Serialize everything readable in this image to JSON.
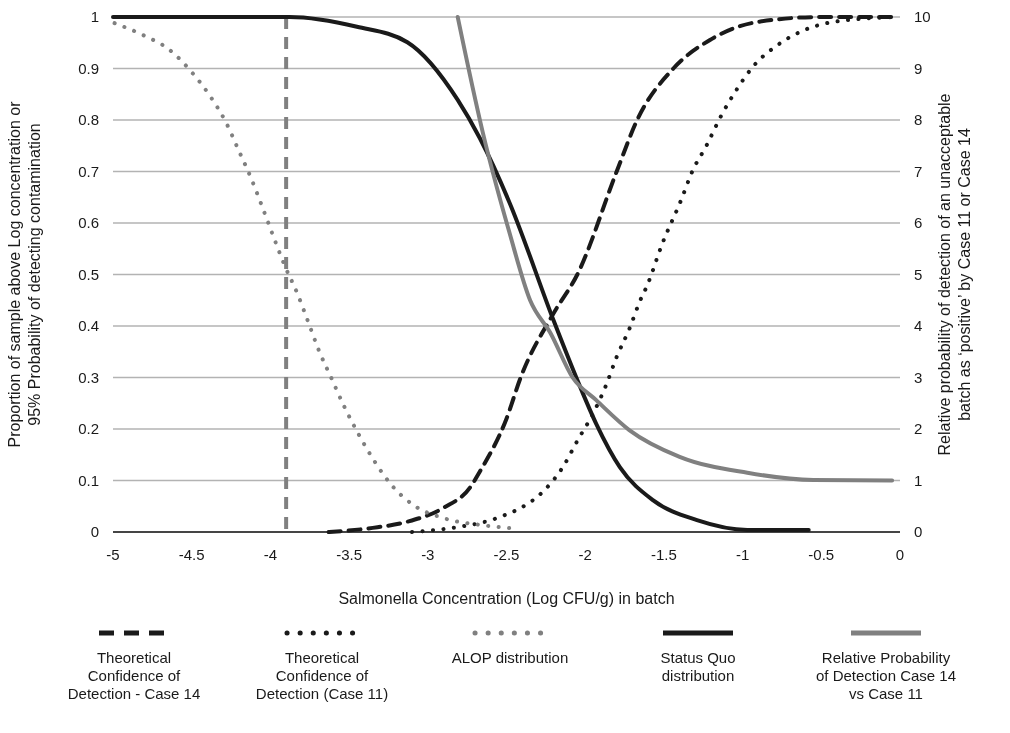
{
  "chart_data": {
    "type": "line",
    "xlabel": "Salmonella Concentration (Log CFU/g) in batch",
    "ylabel": "Proportion of sample above Log concentration or 95% Probability of detecting contamination",
    "y2label": "Relative probability of detection of an unacceptable batch as ‘positive’ by Case 11 or Case 14",
    "xlim": [
      -5,
      0
    ],
    "xticks": [
      -5,
      -4.5,
      -4,
      -3.5,
      -3,
      -2.5,
      -2,
      -1.5,
      -1,
      -0.5,
      0
    ],
    "ylim": [
      0,
      1
    ],
    "yticks": [
      0,
      0.1,
      0.2,
      0.3,
      0.4,
      0.5,
      0.6,
      0.7,
      0.8,
      0.9,
      1
    ],
    "y2lim": [
      0,
      10
    ],
    "y2ticks": [
      0,
      1,
      2,
      3,
      4,
      5,
      6,
      7,
      8,
      9,
      10
    ],
    "grid": "y",
    "legend": "bottom",
    "marker": "none",
    "ref_lines": [
      {
        "axis": "x",
        "value": -3.9,
        "color": "#808080",
        "line_style": "dashed"
      }
    ],
    "series": [
      {
        "name": "Theoretical Confidence of Detection - Case 14",
        "color": "#1a1a1a",
        "line_style": "dashed",
        "x": [
          -3.63,
          -3.35,
          -3.13,
          -2.9,
          -2.73,
          -2.67,
          -2.5,
          -2.41,
          -2.2,
          -2.05,
          -1.8,
          -1.67,
          -1.44,
          -1.21,
          -0.91,
          -0.5,
          -0.05
        ],
        "values": [
          0,
          0.008,
          0.02,
          0.047,
          0.087,
          0.117,
          0.22,
          0.3,
          0.425,
          0.5,
          0.7,
          0.8,
          0.9,
          0.955,
          0.99,
          1,
          1
        ]
      },
      {
        "name": "Theoretical Confidence of Detection (Case 11)",
        "color": "#1a1a1a",
        "line_style": "dotted",
        "x": [
          -3.1,
          -2.8,
          -2.6,
          -2.51,
          -2.42,
          -2.27,
          -2.14,
          -2.05,
          -1.95,
          -1.87,
          -1.8,
          -1.72,
          -1.65,
          -1.61,
          -1.51,
          -1.39,
          -1.32,
          -1.23,
          -1.14,
          -1.04,
          -0.93,
          -0.78,
          -0.62,
          -0.43,
          -0.03
        ],
        "values": [
          0,
          0.01,
          0.023,
          0.033,
          0.045,
          0.078,
          0.127,
          0.177,
          0.23,
          0.283,
          0.34,
          0.394,
          0.45,
          0.476,
          0.56,
          0.645,
          0.7,
          0.75,
          0.806,
          0.858,
          0.905,
          0.945,
          0.973,
          0.99,
          1
        ]
      },
      {
        "name": "ALOP distribution",
        "color": "#808080",
        "line_style": "dotted",
        "x": [
          -4.99,
          -4.81,
          -4.64,
          -4.5,
          -4.38,
          -4.28,
          -4.2,
          -4.12,
          -4.05,
          -3.98,
          -3.91,
          -3.83,
          -3.76,
          -3.69,
          -3.61,
          -3.53,
          -3.44,
          -3.34,
          -3.23,
          -3.08,
          -2.9,
          -2.62,
          -2.42
        ],
        "values": [
          0.988,
          0.965,
          0.936,
          0.893,
          0.845,
          0.794,
          0.74,
          0.685,
          0.63,
          0.573,
          0.518,
          0.464,
          0.408,
          0.351,
          0.297,
          0.243,
          0.19,
          0.138,
          0.091,
          0.05,
          0.027,
          0.012,
          0.006
        ]
      },
      {
        "name": "Status Quo distribution",
        "color": "#1a1a1a",
        "line_style": "solid",
        "x": [
          -5,
          -4.5,
          -4,
          -3.88,
          -3.45,
          -3.13,
          -2.81,
          -2.67,
          -2.48,
          -2.2,
          -2.05,
          -1.93,
          -1.78,
          -1.57,
          -1.29,
          -0.97,
          -0.58
        ],
        "values": [
          1,
          1,
          1,
          1,
          0.981,
          0.951,
          0.839,
          0.765,
          0.639,
          0.41,
          0.295,
          0.21,
          0.126,
          0.062,
          0.023,
          0.004,
          0.004
        ]
      },
      {
        "name": "Relative Probability of Detection Case 14 vs Case 11",
        "color": "#808080",
        "line_style": "solid",
        "axis": "y2",
        "x": [
          -2.81,
          -2.65,
          -2.48,
          -2.35,
          -2.22,
          -2.08,
          -1.93,
          -1.72,
          -1.4,
          -0.97,
          -0.55,
          -0.05
        ],
        "values": [
          10,
          7.75,
          5.8,
          4.5,
          3.86,
          3,
          2.56,
          1.98,
          1.46,
          1.15,
          1.01,
          1
        ]
      }
    ]
  }
}
